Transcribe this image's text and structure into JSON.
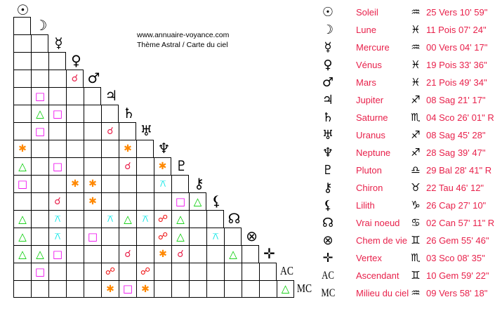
{
  "watermark": {
    "line1": "www.annuaire-voyance.com",
    "line2": "Thème Astral / Carte du ciel"
  },
  "colors": {
    "text": "#e8214b",
    "conjunction": "#e8214b",
    "opposition": "#ee1111",
    "sextile": "#ff8800",
    "square": "#ee00ee",
    "trine": "#00cc00",
    "quincunx": "#00e5e5"
  },
  "aspect_symbols": {
    "conjunction": "☌",
    "opposition": "☍",
    "sextile": "✱",
    "square": "□",
    "trine": "△",
    "quincunx": "⚻"
  },
  "planets": [
    {
      "glyph": "☉",
      "icon": "sun-icon",
      "name": "Soleil",
      "sign": "♒",
      "sign_icon": "aquarius-icon",
      "position": "25 Vers 10' 59\""
    },
    {
      "glyph": "☽",
      "icon": "moon-icon",
      "name": "Lune",
      "sign": "♓",
      "sign_icon": "pisces-icon",
      "position": "11 Pois 07' 24\""
    },
    {
      "glyph": "☿",
      "icon": "mercury-icon",
      "name": "Mercure",
      "sign": "♒",
      "sign_icon": "aquarius-icon",
      "position": "00 Vers 04' 17\""
    },
    {
      "glyph": "♀",
      "icon": "venus-icon",
      "name": "Vénus",
      "sign": "♓",
      "sign_icon": "pisces-icon",
      "position": "19 Pois 33' 36\""
    },
    {
      "glyph": "♂",
      "icon": "mars-icon",
      "name": "Mars",
      "sign": "♓",
      "sign_icon": "pisces-icon",
      "position": "21 Pois 49' 34\""
    },
    {
      "glyph": "♃",
      "icon": "jupiter-icon",
      "name": "Jupiter",
      "sign": "♐",
      "sign_icon": "sagittarius-icon",
      "position": "08 Sag 21' 17\""
    },
    {
      "glyph": "♄",
      "icon": "saturn-icon",
      "name": "Saturne",
      "sign": "♏",
      "sign_icon": "scorpio-icon",
      "position": "04 Sco 26' 01\" R"
    },
    {
      "glyph": "♅",
      "icon": "uranus-icon",
      "name": "Uranus",
      "sign": "♐",
      "sign_icon": "sagittarius-icon",
      "position": "08 Sag 45' 28\""
    },
    {
      "glyph": "♆",
      "icon": "neptune-icon",
      "name": "Neptune",
      "sign": "♐",
      "sign_icon": "sagittarius-icon",
      "position": "28 Sag 39' 47\""
    },
    {
      "glyph": "♇",
      "icon": "pluto-icon",
      "name": "Pluton",
      "sign": "♎",
      "sign_icon": "libra-icon",
      "position": "29 Bal 28' 41\" R"
    },
    {
      "glyph": "⚷",
      "icon": "chiron-icon",
      "name": "Chiron",
      "sign": "♉",
      "sign_icon": "taurus-icon",
      "position": "22 Tau 46' 12\""
    },
    {
      "glyph": "⚸",
      "icon": "lilith-icon",
      "name": "Lilith",
      "sign": "♑",
      "sign_icon": "capricorn-icon",
      "position": "26 Cap 27' 10\""
    },
    {
      "glyph": "☊",
      "icon": "north-node-icon",
      "name": "Vrai noeud",
      "sign": "♋",
      "sign_icon": "cancer-icon",
      "position": "02 Can 57' 11\" R"
    },
    {
      "glyph": "⊗",
      "icon": "part-of-fortune-icon",
      "name": "Chem de vie",
      "sign": "♊",
      "sign_icon": "gemini-icon",
      "position": "26 Gem 55' 46\""
    },
    {
      "glyph": "✛",
      "icon": "vertex-icon",
      "name": "Vertex",
      "sign": "♏",
      "sign_icon": "scorpio-icon",
      "position": "03 Sco 08' 35\""
    },
    {
      "glyph": "AC",
      "icon": "ascendant-label",
      "name": "Ascendant",
      "sign": "♊",
      "sign_icon": "gemini-icon",
      "position": "10 Gem 59' 22\""
    },
    {
      "glyph": "MC",
      "icon": "midheaven-label",
      "name": "Milieu du ciel",
      "sign": "♒",
      "sign_icon": "aquarius-icon",
      "position": "09 Vers 58' 18\""
    }
  ],
  "aspects": [
    [
      4,
      3,
      "conjunction"
    ],
    [
      5,
      1,
      "square"
    ],
    [
      6,
      1,
      "trine"
    ],
    [
      6,
      2,
      "square"
    ],
    [
      7,
      1,
      "square"
    ],
    [
      7,
      5,
      "conjunction"
    ],
    [
      8,
      0,
      "sextile"
    ],
    [
      8,
      6,
      "sextile"
    ],
    [
      9,
      0,
      "trine"
    ],
    [
      9,
      2,
      "square"
    ],
    [
      9,
      6,
      "conjunction"
    ],
    [
      9,
      8,
      "sextile"
    ],
    [
      10,
      0,
      "square"
    ],
    [
      10,
      3,
      "sextile"
    ],
    [
      10,
      4,
      "sextile"
    ],
    [
      10,
      8,
      "quincunx"
    ],
    [
      11,
      2,
      "conjunction"
    ],
    [
      11,
      4,
      "sextile"
    ],
    [
      11,
      9,
      "square"
    ],
    [
      11,
      10,
      "trine"
    ],
    [
      12,
      0,
      "trine"
    ],
    [
      12,
      2,
      "quincunx"
    ],
    [
      12,
      5,
      "quincunx"
    ],
    [
      12,
      6,
      "trine"
    ],
    [
      12,
      7,
      "quincunx"
    ],
    [
      12,
      8,
      "opposition"
    ],
    [
      12,
      9,
      "trine"
    ],
    [
      13,
      0,
      "trine"
    ],
    [
      13,
      2,
      "quincunx"
    ],
    [
      13,
      4,
      "square"
    ],
    [
      13,
      8,
      "opposition"
    ],
    [
      13,
      9,
      "trine"
    ],
    [
      13,
      11,
      "quincunx"
    ],
    [
      14,
      0,
      "trine"
    ],
    [
      14,
      1,
      "trine"
    ],
    [
      14,
      2,
      "square"
    ],
    [
      14,
      6,
      "conjunction"
    ],
    [
      14,
      8,
      "sextile"
    ],
    [
      14,
      9,
      "conjunction"
    ],
    [
      14,
      12,
      "trine"
    ],
    [
      15,
      1,
      "square"
    ],
    [
      15,
      5,
      "opposition"
    ],
    [
      15,
      7,
      "opposition"
    ],
    [
      16,
      5,
      "sextile"
    ],
    [
      16,
      6,
      "square"
    ],
    [
      16,
      7,
      "sextile"
    ],
    [
      16,
      15,
      "trine"
    ]
  ]
}
